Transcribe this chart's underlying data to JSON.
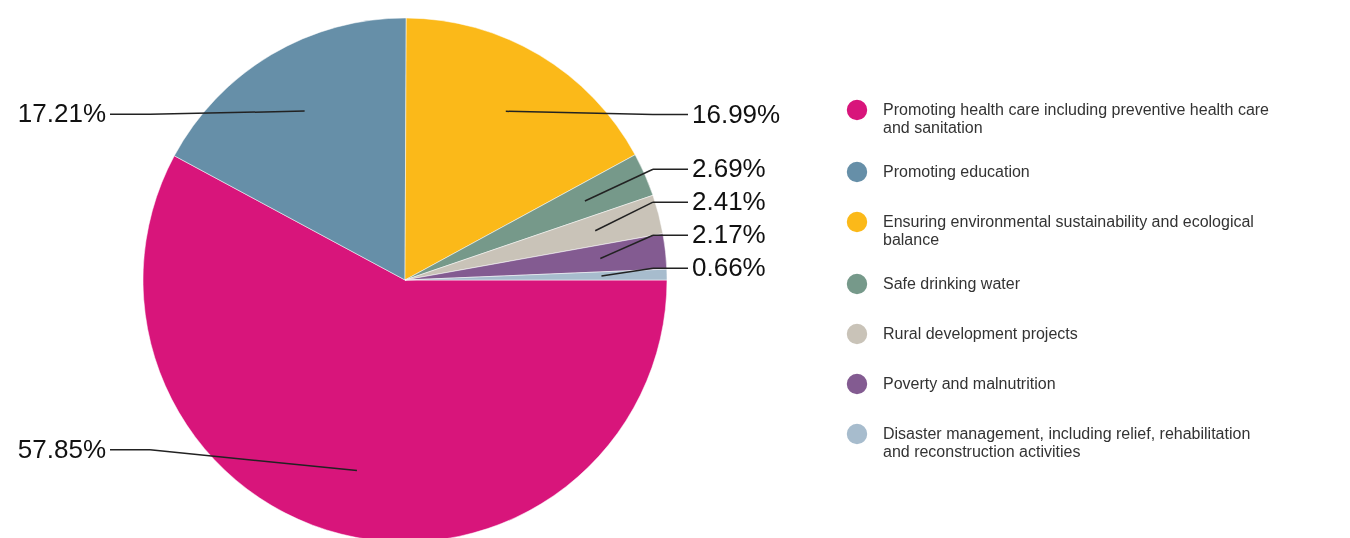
{
  "chart_data": {
    "type": "pie",
    "categories": [
      "Promoting health care including preventive health care and sanitation",
      "Promoting education",
      "Ensuring environmental sustainability and ecological balance",
      "Safe drinking water",
      "Rural development projects",
      "Poverty and malnutrition",
      "Disaster management, including relief, rehabilitation and reconstruction activities"
    ],
    "values": [
      57.85,
      17.21,
      16.99,
      2.69,
      2.41,
      2.17,
      0.66
    ],
    "value_labels": [
      "57.85%",
      "17.21%",
      "16.99%",
      "2.69%",
      "2.41%",
      "2.17%",
      "0.66%"
    ],
    "colors": [
      "#d8157b",
      "#668fa8",
      "#fbb919",
      "#76998a",
      "#c9c3b8",
      "#835b91",
      "#a7bccd"
    ],
    "legend": "right"
  }
}
